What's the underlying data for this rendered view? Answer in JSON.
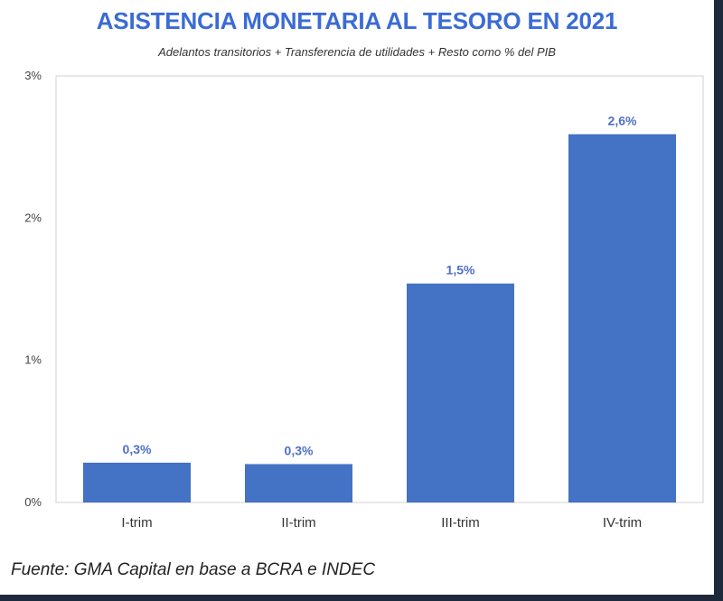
{
  "chart_data": {
    "type": "bar",
    "title": "ASISTENCIA MONETARIA AL TESORO EN 2021",
    "subtitle": "Adelantos transitorios + Transferencia de utilidades + Resto como % del PIB",
    "categories": [
      "I-trim",
      "II-trim",
      "III-trim",
      "IV-trim"
    ],
    "values": [
      0.28,
      0.27,
      1.54,
      2.59
    ],
    "data_labels": [
      "0,3%",
      "0,3%",
      "1,5%",
      "2,6%"
    ],
    "ylim": [
      0,
      3
    ],
    "yticks": [
      0,
      1,
      2,
      3
    ],
    "ytick_labels": [
      "0%",
      "1%",
      "2%",
      "3%"
    ],
    "xlabel": "",
    "ylabel": "",
    "grid": false,
    "bar_color": "#4472c4",
    "source": "Fuente: GMA Capital en base a BCRA e INDEC"
  },
  "colors": {
    "title": "#3a6bd6",
    "bar": "#4472c4",
    "background_outer": "#1e2a3c"
  }
}
